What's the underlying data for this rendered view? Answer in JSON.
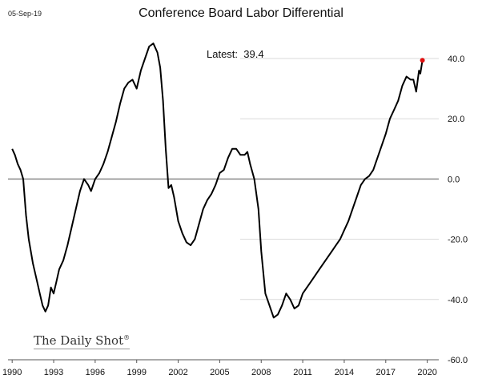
{
  "header": {
    "date": "05-Sep-19",
    "title": "Conference Board Labor Differential",
    "latest_label": "Latest:",
    "latest_value": "39.4"
  },
  "branding": {
    "name": "The Daily Shot",
    "mark": "®"
  },
  "colors": {
    "line": "#000000",
    "zero_line": "#7f7f7f",
    "latest_marker": "#e01010",
    "grid": "#d9d9d9"
  },
  "chart_data": {
    "type": "line",
    "title": "Conference Board Labor Differential",
    "xlabel": "",
    "ylabel": "",
    "xlim": [
      1989.7,
      2020.6
    ],
    "ylim": [
      -60,
      44
    ],
    "x_ticks": [
      1990,
      1993,
      1996,
      1999,
      2002,
      2005,
      2008,
      2011,
      2014,
      2017,
      2020
    ],
    "y_ticks": [
      40,
      20,
      0,
      -20,
      -40,
      -60
    ],
    "y_tick_labels": [
      "40.0",
      "20.0",
      "0.0",
      "-20.0",
      "-40.0",
      "-60.0"
    ],
    "y_axis_side": "right",
    "reference_line": 0,
    "series": [
      {
        "name": "Labor Differential",
        "x": [
          1990.0,
          1990.2,
          1990.4,
          1990.6,
          1990.8,
          1991.0,
          1991.2,
          1991.5,
          1991.8,
          1992.0,
          1992.2,
          1992.4,
          1992.6,
          1992.8,
          1993.0,
          1993.2,
          1993.4,
          1993.7,
          1994.0,
          1994.3,
          1994.6,
          1994.9,
          1995.2,
          1995.5,
          1995.7,
          1996.0,
          1996.3,
          1996.6,
          1996.9,
          1997.2,
          1997.5,
          1997.8,
          1998.1,
          1998.4,
          1998.7,
          1999.0,
          1999.3,
          1999.6,
          1999.9,
          2000.2,
          2000.5,
          2000.7,
          2000.9,
          2001.1,
          2001.3,
          2001.5,
          2001.7,
          2002.0,
          2002.3,
          2002.6,
          2002.9,
          2003.2,
          2003.5,
          2003.8,
          2004.1,
          2004.4,
          2004.7,
          2005.0,
          2005.3,
          2005.6,
          2005.9,
          2006.2,
          2006.5,
          2006.8,
          2007.0,
          2007.2,
          2007.5,
          2007.8,
          2008.0,
          2008.3,
          2008.6,
          2008.9,
          2009.2,
          2009.5,
          2009.8,
          2010.1,
          2010.4,
          2010.7,
          2011.0,
          2011.3,
          2011.6,
          2011.9,
          2012.2,
          2012.5,
          2012.8,
          2013.1,
          2013.4,
          2013.7,
          2014.0,
          2014.3,
          2014.6,
          2014.9,
          2015.2,
          2015.5,
          2015.8,
          2016.1,
          2016.4,
          2016.7,
          2017.0,
          2017.3,
          2017.6,
          2017.9,
          2018.2,
          2018.5,
          2018.8,
          2019.0,
          2019.2,
          2019.4,
          2019.5,
          2019.65
        ],
        "y": [
          10,
          8,
          5,
          3,
          0,
          -12,
          -20,
          -28,
          -34,
          -38,
          -42,
          -44,
          -42,
          -36,
          -38,
          -34,
          -30,
          -27,
          -22,
          -16,
          -10,
          -4,
          0,
          -2,
          -4,
          0,
          2,
          5,
          9,
          14,
          19,
          25,
          30,
          32,
          33,
          30,
          36,
          40,
          44,
          45,
          42,
          37,
          26,
          10,
          -3,
          -2,
          -6,
          -14,
          -18,
          -21,
          -22,
          -20,
          -15,
          -10,
          -7,
          -5,
          -2,
          2,
          3,
          7,
          10,
          10,
          8,
          8,
          9,
          5,
          0,
          -10,
          -24,
          -38,
          -42,
          -46,
          -45,
          -42,
          -38,
          -40,
          -43,
          -42,
          -38,
          -36,
          -34,
          -32,
          -30,
          -28,
          -26,
          -24,
          -22,
          -20,
          -17,
          -14,
          -10,
          -6,
          -2,
          0,
          1,
          3,
          7,
          11,
          15,
          20,
          23,
          26,
          31,
          34,
          33,
          33,
          29,
          36,
          35,
          39.4
        ]
      }
    ],
    "latest_point": {
      "x": 2019.65,
      "y": 39.4
    }
  }
}
